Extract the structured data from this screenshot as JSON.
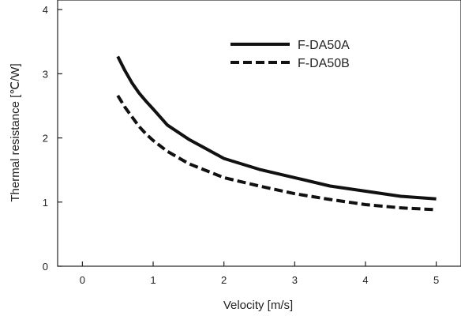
{
  "chart_data": {
    "type": "line",
    "title": "",
    "xlabel": "Velocity [m/s]",
    "ylabel": "Thermal resistance [℃/W]",
    "xlim": [
      -0.35,
      5.35
    ],
    "ylim": [
      0,
      4.15
    ],
    "x_ticks": [
      0,
      1,
      2,
      3,
      4,
      5
    ],
    "y_ticks": [
      0,
      1,
      2,
      3,
      4
    ],
    "grid": false,
    "legend": "top-right",
    "series": [
      {
        "name": "F-DA50A",
        "style": "solid",
        "color": "#111111",
        "x": [
          0.5,
          0.6,
          0.7,
          0.8,
          0.9,
          1.0,
          1.2,
          1.5,
          2.0,
          2.5,
          3.0,
          3.5,
          4.0,
          4.5,
          5.0
        ],
        "y": [
          3.27,
          3.05,
          2.86,
          2.7,
          2.57,
          2.45,
          2.2,
          1.98,
          1.68,
          1.51,
          1.38,
          1.25,
          1.17,
          1.09,
          1.05
        ]
      },
      {
        "name": "F-DA50B",
        "style": "dashed",
        "color": "#111111",
        "x": [
          0.5,
          0.6,
          0.7,
          0.8,
          0.9,
          1.0,
          1.2,
          1.5,
          2.0,
          2.5,
          3.0,
          3.5,
          4.0,
          4.5,
          5.0
        ],
        "y": [
          2.66,
          2.48,
          2.33,
          2.18,
          2.06,
          1.96,
          1.79,
          1.6,
          1.38,
          1.25,
          1.13,
          1.04,
          0.96,
          0.91,
          0.88
        ]
      }
    ]
  }
}
